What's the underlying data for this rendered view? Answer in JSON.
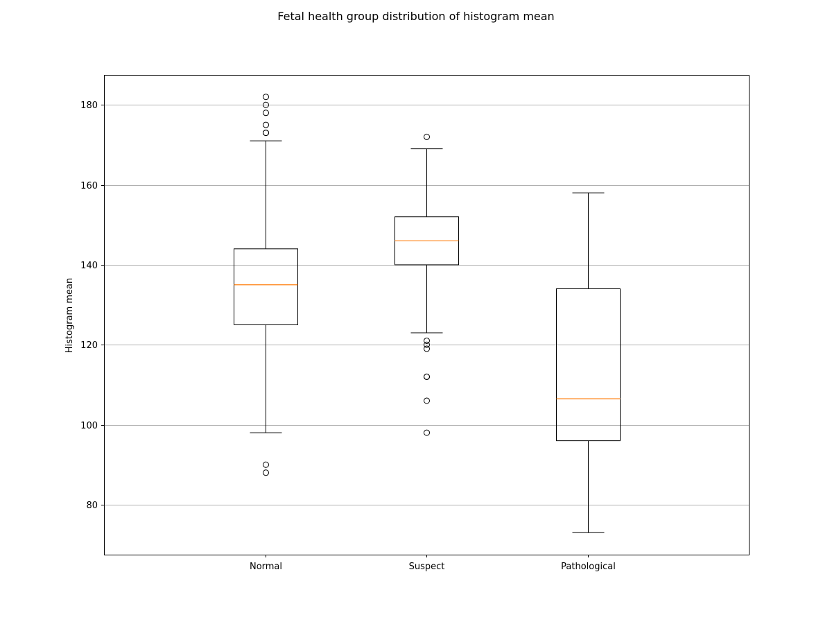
{
  "chart_data": {
    "type": "boxplot",
    "title": "Fetal health group distribution of histogram mean",
    "xlabel": "",
    "ylabel": "Histogram mean",
    "ylim": [
      67.5,
      187.5
    ],
    "yticks": [
      80,
      100,
      120,
      140,
      160,
      180
    ],
    "grid": "y",
    "categories": [
      "Normal",
      "Suspect",
      "Pathological"
    ],
    "boxes": [
      {
        "name": "Normal",
        "whisker_low": 98,
        "q1": 125,
        "median": 135,
        "q3": 144,
        "whisker_high": 171,
        "outliers": [
          88,
          90,
          173,
          173,
          175,
          178,
          180,
          182
        ]
      },
      {
        "name": "Suspect",
        "whisker_low": 123,
        "q1": 140,
        "median": 146,
        "q3": 152,
        "whisker_high": 169,
        "outliers": [
          98,
          106,
          112,
          112,
          119,
          120,
          121,
          172
        ]
      },
      {
        "name": "Pathological",
        "whisker_low": 73,
        "q1": 96,
        "median": 106.5,
        "q3": 134,
        "whisker_high": 158,
        "outliers": []
      }
    ],
    "colors": {
      "box": "#000000",
      "median": "#ff7f0e",
      "grid": "#b0b0b0"
    }
  }
}
